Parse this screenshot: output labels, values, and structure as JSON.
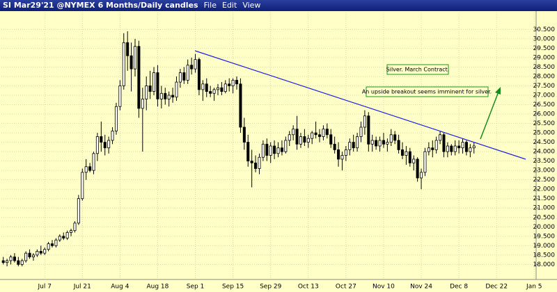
{
  "header": {
    "symbol": "SI Mar29'21 @NYMEX",
    "period": "6 Months/Daily candles",
    "menu": [
      "File",
      "Edit",
      "View"
    ]
  },
  "chart_data": {
    "type": "candlestick",
    "annotations": [
      "Silver. March Contract.",
      "An upside breakout seems imminent for silver."
    ],
    "up_color": "#ffffff",
    "down_color": "#000000",
    "grid": true,
    "categories": [
      null,
      null,
      null,
      null,
      null,
      null,
      null,
      null,
      null,
      null,
      null,
      "Jul 7",
      null,
      null,
      null,
      null,
      null,
      null,
      null,
      null,
      null,
      "Jul 21",
      null,
      null,
      null,
      null,
      null,
      null,
      null,
      null,
      null,
      "Aug 4",
      null,
      null,
      null,
      null,
      null,
      null,
      null,
      null,
      null,
      "Aug 18",
      null,
      null,
      null,
      null,
      null,
      null,
      null,
      null,
      null,
      "Sep 1",
      null,
      null,
      null,
      null,
      null,
      null,
      null,
      null,
      null,
      "Sep 15",
      null,
      null,
      null,
      null,
      null,
      null,
      null,
      null,
      null,
      "Sep 29",
      null,
      null,
      null,
      null,
      null,
      null,
      null,
      null,
      null,
      "Oct 13",
      null,
      null,
      null,
      null,
      null,
      null,
      null,
      null,
      null,
      "Oct 27",
      null,
      null,
      null,
      null,
      null,
      null,
      null,
      null,
      null,
      "Nov 10",
      null,
      null,
      null,
      null,
      null,
      null,
      null,
      null,
      null,
      "Nov 24",
      null,
      null,
      null,
      null,
      null,
      null,
      null,
      null,
      null,
      "Dec 8",
      null,
      null,
      null,
      null,
      null,
      null,
      null,
      null,
      null,
      "Dec 22",
      null,
      null,
      null,
      null,
      null,
      null,
      null,
      null,
      null,
      "Jan 5"
    ],
    "ohlc": [
      [
        18.2,
        18.4,
        18.0,
        18.1
      ],
      [
        18.1,
        18.3,
        17.9,
        18.2
      ],
      [
        18.2,
        18.5,
        18.0,
        18.4
      ],
      [
        18.4,
        18.6,
        18.1,
        18.2
      ],
      [
        18.2,
        18.4,
        17.9,
        18.0
      ],
      [
        18.0,
        18.3,
        17.9,
        18.2
      ],
      [
        18.2,
        18.7,
        18.1,
        18.6
      ],
      [
        18.6,
        18.8,
        18.3,
        18.4
      ],
      [
        18.4,
        18.6,
        18.2,
        18.5
      ],
      [
        18.5,
        18.8,
        18.4,
        18.7
      ],
      [
        18.7,
        19.0,
        18.5,
        18.6
      ],
      [
        18.6,
        18.9,
        18.5,
        18.8
      ],
      [
        18.8,
        19.2,
        18.7,
        19.1
      ],
      [
        19.1,
        19.3,
        18.9,
        19.0
      ],
      [
        19.0,
        19.4,
        18.9,
        19.3
      ],
      [
        19.3,
        19.6,
        19.2,
        19.5
      ],
      [
        19.5,
        19.7,
        19.3,
        19.4
      ],
      [
        19.4,
        19.8,
        19.3,
        19.7
      ],
      [
        19.7,
        19.9,
        19.5,
        19.8
      ],
      [
        19.8,
        20.3,
        19.7,
        20.2
      ],
      [
        20.2,
        21.7,
        20.1,
        21.5
      ],
      [
        21.5,
        23.1,
        21.4,
        22.9
      ],
      [
        22.9,
        23.6,
        22.5,
        23.2
      ],
      [
        23.2,
        23.4,
        22.9,
        23.0
      ],
      [
        23.0,
        24.0,
        22.8,
        23.9
      ],
      [
        23.9,
        25.0,
        23.5,
        24.8
      ],
      [
        24.8,
        25.6,
        24.0,
        24.5
      ],
      [
        24.5,
        24.9,
        23.8,
        24.2
      ],
      [
        24.2,
        24.8,
        23.9,
        24.6
      ],
      [
        24.6,
        25.3,
        24.4,
        25.1
      ],
      [
        25.1,
        26.6,
        24.9,
        26.4
      ],
      [
        26.4,
        27.8,
        26.2,
        27.5
      ],
      [
        27.5,
        30.3,
        27.3,
        29.8
      ],
      [
        29.8,
        30.4,
        28.3,
        29.1
      ],
      [
        29.1,
        29.8,
        27.2,
        28.4
      ],
      [
        28.4,
        30.0,
        28.0,
        29.6
      ],
      [
        29.6,
        29.9,
        25.8,
        26.3
      ],
      [
        26.3,
        27.4,
        24.0,
        26.8
      ],
      [
        26.8,
        28.0,
        26.2,
        27.5
      ],
      [
        27.5,
        28.3,
        26.8,
        27.2
      ],
      [
        27.2,
        28.5,
        27.0,
        28.2
      ],
      [
        28.2,
        28.6,
        26.4,
        26.8
      ],
      [
        26.8,
        27.5,
        26.3,
        27.1
      ],
      [
        27.1,
        27.4,
        26.5,
        26.8
      ],
      [
        26.8,
        27.2,
        26.4,
        27.0
      ],
      [
        27.0,
        27.4,
        26.6,
        26.9
      ],
      [
        26.9,
        28.0,
        26.7,
        27.7
      ],
      [
        27.7,
        28.4,
        27.4,
        28.2
      ],
      [
        28.2,
        28.5,
        27.6,
        27.8
      ],
      [
        27.8,
        28.9,
        27.6,
        28.6
      ],
      [
        28.6,
        29.0,
        28.1,
        28.4
      ],
      [
        28.4,
        29.2,
        28.2,
        28.9
      ],
      [
        28.9,
        29.0,
        27.0,
        27.3
      ],
      [
        27.3,
        27.8,
        26.7,
        27.6
      ],
      [
        27.6,
        27.9,
        26.9,
        27.2
      ],
      [
        27.2,
        27.5,
        26.9,
        27.1
      ],
      [
        27.1,
        27.4,
        26.7,
        27.3
      ],
      [
        27.3,
        27.6,
        27.0,
        27.4
      ],
      [
        27.4,
        27.7,
        27.0,
        27.2
      ],
      [
        27.2,
        27.8,
        27.1,
        27.6
      ],
      [
        27.6,
        27.9,
        27.2,
        27.5
      ],
      [
        27.5,
        27.9,
        27.1,
        27.8
      ],
      [
        27.8,
        28.0,
        27.3,
        27.6
      ],
      [
        27.6,
        27.9,
        25.0,
        25.3
      ],
      [
        25.3,
        25.8,
        24.1,
        24.5
      ],
      [
        24.5,
        24.9,
        23.2,
        23.5
      ],
      [
        23.5,
        24.1,
        22.1,
        23.4
      ],
      [
        23.4,
        23.8,
        22.9,
        23.1
      ],
      [
        23.1,
        23.9,
        22.8,
        23.7
      ],
      [
        23.7,
        24.6,
        23.5,
        24.4
      ],
      [
        24.4,
        24.7,
        23.5,
        23.8
      ],
      [
        23.8,
        24.5,
        23.4,
        24.3
      ],
      [
        24.3,
        24.6,
        23.6,
        23.9
      ],
      [
        23.9,
        24.5,
        23.7,
        24.2
      ],
      [
        24.2,
        24.6,
        23.8,
        24.0
      ],
      [
        24.0,
        24.8,
        23.9,
        24.6
      ],
      [
        24.6,
        25.1,
        24.3,
        24.9
      ],
      [
        24.9,
        25.4,
        24.6,
        25.2
      ],
      [
        25.2,
        25.9,
        24.1,
        24.4
      ],
      [
        24.4,
        25.0,
        24.2,
        24.8
      ],
      [
        24.8,
        25.2,
        24.3,
        24.5
      ],
      [
        24.5,
        24.9,
        24.2,
        24.7
      ],
      [
        24.7,
        25.1,
        24.4,
        25.0
      ],
      [
        25.0,
        25.6,
        24.7,
        24.9
      ],
      [
        24.9,
        25.2,
        24.5,
        24.8
      ],
      [
        24.8,
        25.4,
        24.6,
        25.2
      ],
      [
        25.2,
        25.5,
        24.7,
        24.9
      ],
      [
        24.9,
        25.2,
        24.2,
        24.4
      ],
      [
        24.4,
        24.8,
        23.9,
        24.1
      ],
      [
        24.1,
        24.5,
        23.2,
        23.6
      ],
      [
        23.6,
        24.0,
        23.0,
        23.8
      ],
      [
        23.8,
        24.3,
        23.5,
        24.1
      ],
      [
        24.1,
        24.7,
        23.8,
        24.5
      ],
      [
        24.5,
        24.9,
        24.0,
        24.2
      ],
      [
        24.2,
        25.0,
        24.0,
        24.8
      ],
      [
        24.8,
        25.6,
        24.5,
        25.3
      ],
      [
        25.3,
        26.2,
        24.9,
        25.9
      ],
      [
        25.9,
        26.1,
        24.0,
        24.4
      ],
      [
        24.4,
        24.9,
        24.0,
        24.6
      ],
      [
        24.6,
        24.8,
        24.1,
        24.3
      ],
      [
        24.3,
        24.8,
        24.0,
        24.6
      ],
      [
        24.6,
        25.0,
        24.2,
        24.4
      ],
      [
        24.4,
        24.7,
        24.0,
        24.5
      ],
      [
        24.5,
        25.2,
        24.3,
        24.9
      ],
      [
        24.9,
        25.1,
        24.4,
        24.6
      ],
      [
        24.6,
        24.9,
        23.9,
        24.1
      ],
      [
        24.1,
        24.5,
        23.6,
        23.8
      ],
      [
        23.8,
        24.3,
        23.3,
        24.0
      ],
      [
        24.0,
        24.2,
        23.2,
        23.4
      ],
      [
        23.4,
        23.8,
        23.0,
        23.6
      ],
      [
        23.6,
        23.7,
        22.4,
        22.6
      ],
      [
        22.6,
        23.1,
        22.0,
        22.9
      ],
      [
        22.9,
        24.2,
        22.7,
        24.0
      ],
      [
        24.0,
        24.5,
        23.8,
        24.2
      ],
      [
        24.2,
        24.6,
        23.7,
        24.1
      ],
      [
        24.1,
        24.8,
        23.9,
        24.6
      ],
      [
        24.6,
        25.1,
        24.4,
        24.9
      ],
      [
        24.9,
        25.0,
        23.7,
        24.0
      ],
      [
        24.0,
        24.5,
        23.7,
        24.3
      ],
      [
        24.3,
        24.4,
        23.8,
        24.0
      ],
      [
        24.0,
        24.6,
        23.8,
        24.3
      ],
      [
        24.3,
        24.6,
        23.9,
        24.2
      ],
      [
        24.2,
        24.7,
        23.9,
        24.5
      ],
      [
        24.5,
        24.6,
        23.8,
        24.0
      ],
      [
        24.0,
        24.4,
        23.7,
        24.2
      ],
      [
        24.2,
        24.5,
        23.9,
        24.3
      ],
      null,
      null,
      null,
      null,
      null,
      null,
      null,
      null,
      null,
      null,
      null,
      null,
      null,
      null,
      null,
      null
    ],
    "ylim": [
      17.2,
      31.4
    ],
    "yticks": [
      {
        "value": 18,
        "label": "18.000"
      },
      {
        "value": 18.5,
        "label": "18.500"
      },
      {
        "value": 19,
        "label": "19.000"
      },
      {
        "value": 19.5,
        "label": "19.500"
      },
      {
        "value": 20,
        "label": "20.000"
      },
      {
        "value": 20.5,
        "label": "20.500"
      },
      {
        "value": 21,
        "label": "21.000"
      },
      {
        "value": 21.5,
        "label": "21.500"
      },
      {
        "value": 22,
        "label": "22.000"
      },
      {
        "value": 22.5,
        "label": "22.500"
      },
      {
        "value": 23,
        "label": "23.000"
      },
      {
        "value": 23.5,
        "label": "23.500"
      },
      {
        "value": 24,
        "label": "24.000"
      },
      {
        "value": 24.5,
        "label": "24.500"
      },
      {
        "value": 25,
        "label": "25.000"
      },
      {
        "value": 25.5,
        "label": "25.500"
      },
      {
        "value": 26,
        "label": "26.000"
      },
      {
        "value": 26.5,
        "label": "26.500"
      },
      {
        "value": 27,
        "label": "27.000"
      },
      {
        "value": 27.5,
        "label": "27.500"
      },
      {
        "value": 28,
        "label": "28.000"
      },
      {
        "value": 28.5,
        "label": "28.500"
      },
      {
        "value": 29,
        "label": "29.000"
      },
      {
        "value": 29.5,
        "label": "29.500"
      },
      {
        "value": 30,
        "label": "30.000"
      },
      {
        "value": 30.5,
        "label": "30.500"
      }
    ]
  }
}
